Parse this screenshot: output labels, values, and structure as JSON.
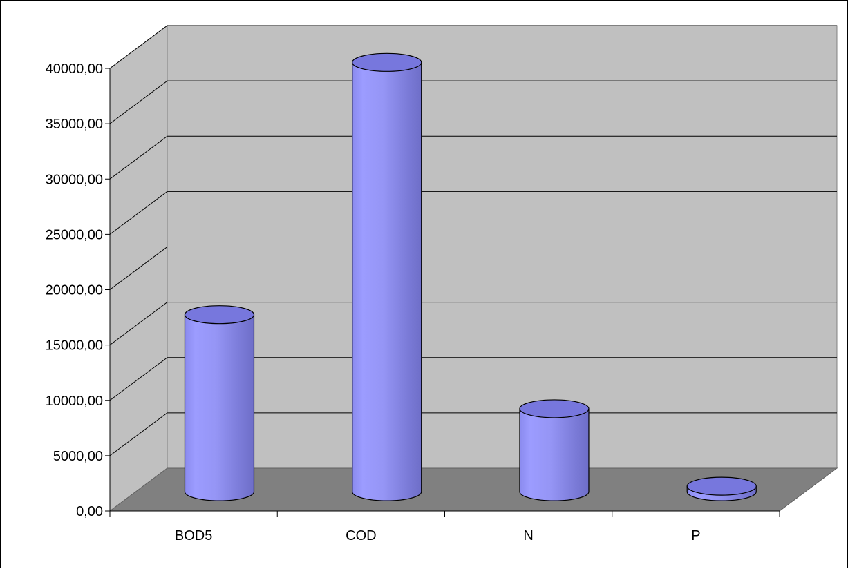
{
  "chart_data": {
    "type": "bar",
    "style": "3d-cylinder",
    "title": "",
    "xlabel": "",
    "ylabel": "",
    "categories": [
      "BOD5",
      "COD",
      "N",
      "P"
    ],
    "series": [
      {
        "values": [
          16000,
          38800,
          7500,
          500
        ]
      }
    ],
    "ylim": [
      0,
      40000
    ],
    "yticks": [
      0,
      5000,
      10000,
      15000,
      20000,
      25000,
      30000,
      35000,
      40000
    ],
    "ytick_labels": [
      "0,00",
      "5000,00",
      "10000,00",
      "15000,00",
      "20000,00",
      "25000,00",
      "30000,00",
      "35000,00",
      "40000,00"
    ],
    "grid": true,
    "legend": "none",
    "colors": {
      "bar": "#9999ff",
      "bar_top": "#7777dd",
      "wall": "#c0c0c0",
      "floor": "#808080",
      "grid": "#000000"
    }
  }
}
